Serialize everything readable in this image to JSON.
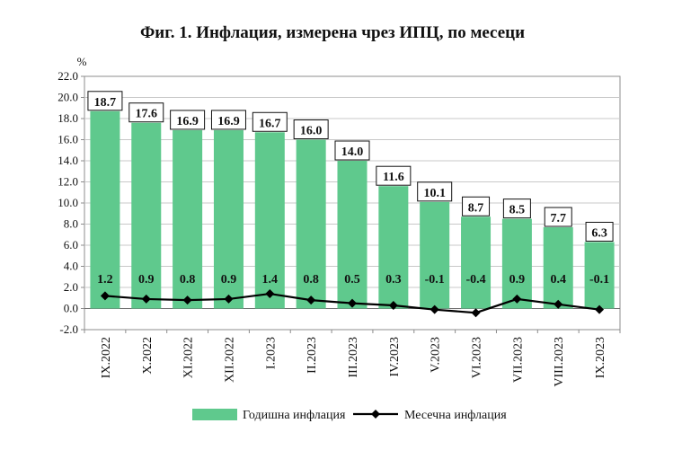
{
  "chart_data": {
    "type": "bar",
    "title": "Фиг. 1. Инфлация, измерена чрез ИПЦ, по месеци",
    "ylabel": "%",
    "xlabel": "",
    "ylim": [
      -2.0,
      22.0
    ],
    "yticks": [
      "22.0",
      "20.0",
      "18.0",
      "16.0",
      "14.0",
      "12.0",
      "10.0",
      "8.0",
      "6.0",
      "4.0",
      "2.0",
      "0.0",
      "-2.0"
    ],
    "categories": [
      "IX.2022",
      "X.2022",
      "XI.2022",
      "XII.2022",
      "I.2023",
      "II.2023",
      "III.2023",
      "IV.2023",
      "V.2023",
      "VI.2023",
      "VII.2023",
      "VIII.2023",
      "IX.2023"
    ],
    "series": [
      {
        "name": "Годишна инфлация",
        "type": "bar",
        "color": "#5fc98d",
        "values": [
          18.7,
          17.6,
          16.9,
          16.9,
          16.7,
          16.0,
          14.0,
          11.6,
          10.1,
          8.7,
          8.5,
          7.7,
          6.3
        ],
        "value_labels": [
          "18.7",
          "17.6",
          "16.9",
          "16.9",
          "16.7",
          "16.0",
          "14.0",
          "11.6",
          "10.1",
          "8.7",
          "8.5",
          "7.7",
          "6.3"
        ]
      },
      {
        "name": "Месечна инфлация",
        "type": "line",
        "color": "#000000",
        "marker": "diamond",
        "values": [
          1.2,
          0.9,
          0.8,
          0.9,
          1.4,
          0.8,
          0.5,
          0.3,
          -0.1,
          -0.4,
          0.9,
          0.4,
          -0.1
        ],
        "value_labels": [
          "1.2",
          "0.9",
          "0.8",
          "0.9",
          "1.4",
          "0.8",
          "0.5",
          "0.3",
          "-0.1",
          "-0.4",
          "0.9",
          "0.4",
          "-0.1"
        ]
      }
    ],
    "grid": true,
    "legend": "bottom"
  }
}
